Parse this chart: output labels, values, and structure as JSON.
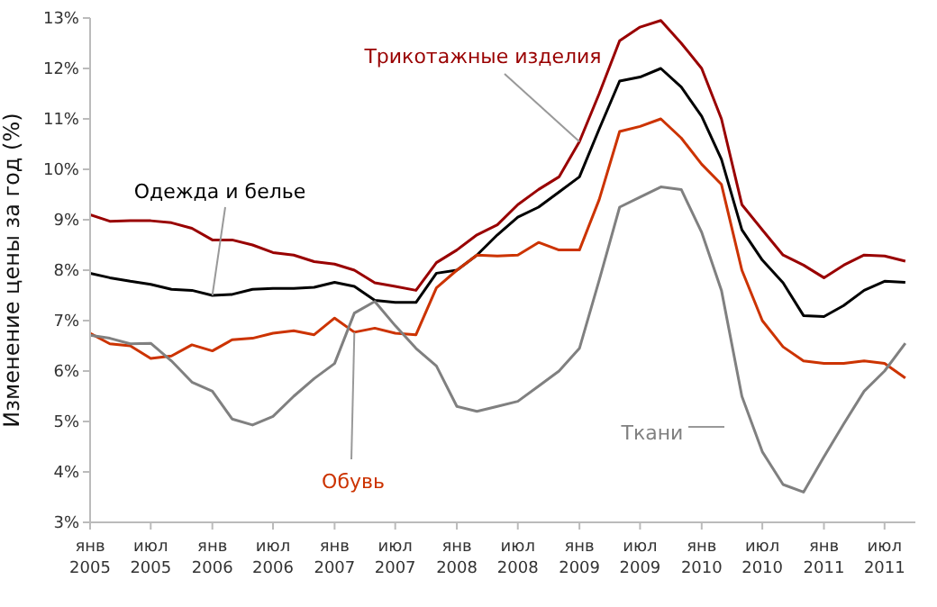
{
  "chart_data": {
    "type": "line",
    "ylabel": "Изменение  цены за год (%)",
    "x": [
      "2005-01",
      "2005-03",
      "2005-05",
      "2005-07",
      "2005-09",
      "2005-11",
      "2006-01",
      "2006-03",
      "2006-05",
      "2006-07",
      "2006-09",
      "2006-11",
      "2007-01",
      "2007-03",
      "2007-05",
      "2007-07",
      "2007-09",
      "2007-11",
      "2008-01",
      "2008-03",
      "2008-05",
      "2008-07",
      "2008-09",
      "2008-11",
      "2009-01",
      "2009-03",
      "2009-05",
      "2009-07",
      "2009-09",
      "2009-11",
      "2010-01",
      "2010-03",
      "2010-05",
      "2010-07",
      "2010-09",
      "2010-11",
      "2011-01",
      "2011-03",
      "2011-05",
      "2011-07",
      "2011-09"
    ],
    "series": [
      {
        "name": "Одежда и белье",
        "color": "#000000",
        "values": [
          7.94,
          7.85,
          7.78,
          7.72,
          7.62,
          7.6,
          7.5,
          7.52,
          7.62,
          7.64,
          7.64,
          7.66,
          7.76,
          7.68,
          7.4,
          7.36,
          7.36,
          7.94,
          8.0,
          8.3,
          8.7,
          9.05,
          9.25,
          9.55,
          9.85,
          10.8,
          11.75,
          11.83,
          12.0,
          11.63,
          11.05,
          10.2,
          8.8,
          8.2,
          7.75,
          7.1,
          7.08,
          7.3,
          7.6,
          7.78,
          7.76
        ]
      },
      {
        "name": "Трикотажные изделия",
        "color": "#990000",
        "values": [
          9.1,
          8.97,
          8.98,
          8.98,
          8.94,
          8.83,
          8.6,
          8.6,
          8.5,
          8.35,
          8.3,
          8.17,
          8.12,
          8.0,
          7.75,
          7.68,
          7.6,
          8.15,
          8.4,
          8.7,
          8.9,
          9.3,
          9.6,
          9.85,
          10.55,
          11.5,
          12.55,
          12.82,
          12.95,
          12.5,
          12.0,
          11.0,
          9.3,
          8.8,
          8.3,
          8.1,
          7.85,
          8.1,
          8.3,
          8.28,
          8.18
        ]
      },
      {
        "name": "Обувь",
        "color": "#cc3300",
        "values": [
          6.75,
          6.54,
          6.5,
          6.25,
          6.3,
          6.52,
          6.4,
          6.62,
          6.65,
          6.75,
          6.8,
          6.72,
          7.05,
          6.77,
          6.85,
          6.75,
          6.72,
          7.65,
          8.0,
          8.3,
          8.28,
          8.3,
          8.55,
          8.4,
          8.4,
          9.4,
          10.75,
          10.85,
          11.0,
          10.62,
          10.1,
          9.7,
          8.0,
          7.0,
          6.48,
          6.2,
          6.15,
          6.15,
          6.2,
          6.15,
          5.86
        ]
      },
      {
        "name": "Ткани",
        "color": "#808080",
        "values": [
          6.71,
          6.65,
          6.54,
          6.55,
          6.2,
          5.78,
          5.6,
          5.05,
          4.93,
          5.1,
          5.5,
          5.85,
          6.15,
          7.15,
          7.38,
          6.9,
          6.45,
          6.1,
          5.3,
          5.2,
          5.3,
          5.4,
          5.7,
          6.0,
          6.45,
          7.8,
          9.25,
          9.45,
          9.65,
          9.6,
          8.75,
          7.6,
          5.5,
          4.4,
          3.75,
          3.6,
          4.3,
          4.95,
          5.6,
          6.0,
          6.55
        ]
      }
    ],
    "xlim": [
      "2005-01",
      "2011-10"
    ],
    "xticks": [
      {
        "value": "2005-01",
        "label": "янв\n2005"
      },
      {
        "value": "2005-07",
        "label": "июл\n2005"
      },
      {
        "value": "2006-01",
        "label": "янв\n2006"
      },
      {
        "value": "2006-07",
        "label": "июл\n2006"
      },
      {
        "value": "2007-01",
        "label": "янв\n2007"
      },
      {
        "value": "2007-07",
        "label": "июл\n2007"
      },
      {
        "value": "2008-01",
        "label": "янв\n2008"
      },
      {
        "value": "2008-07",
        "label": "июл\n2008"
      },
      {
        "value": "2009-01",
        "label": "янв\n2009"
      },
      {
        "value": "2009-07",
        "label": "июл\n2009"
      },
      {
        "value": "2010-01",
        "label": "янв\n2010"
      },
      {
        "value": "2010-07",
        "label": "июл\n2010"
      },
      {
        "value": "2011-01",
        "label": "янв\n2011"
      },
      {
        "value": "2011-07",
        "label": "июл\n2011"
      }
    ],
    "ylim": [
      3,
      13
    ],
    "yticks": [
      {
        "value": 3,
        "label": "3%"
      },
      {
        "value": 4,
        "label": "4%"
      },
      {
        "value": 5,
        "label": "5%"
      },
      {
        "value": 6,
        "label": "6%"
      },
      {
        "value": 7,
        "label": "7%"
      },
      {
        "value": 8,
        "label": "8%"
      },
      {
        "value": 9,
        "label": "9%"
      },
      {
        "value": 10,
        "label": "10%"
      },
      {
        "value": 11,
        "label": "11%"
      },
      {
        "value": 12,
        "label": "12%"
      },
      {
        "value": 13,
        "label": "13%"
      }
    ],
    "grid": false,
    "legend": false,
    "marker": "none",
    "line_style": "solid"
  }
}
